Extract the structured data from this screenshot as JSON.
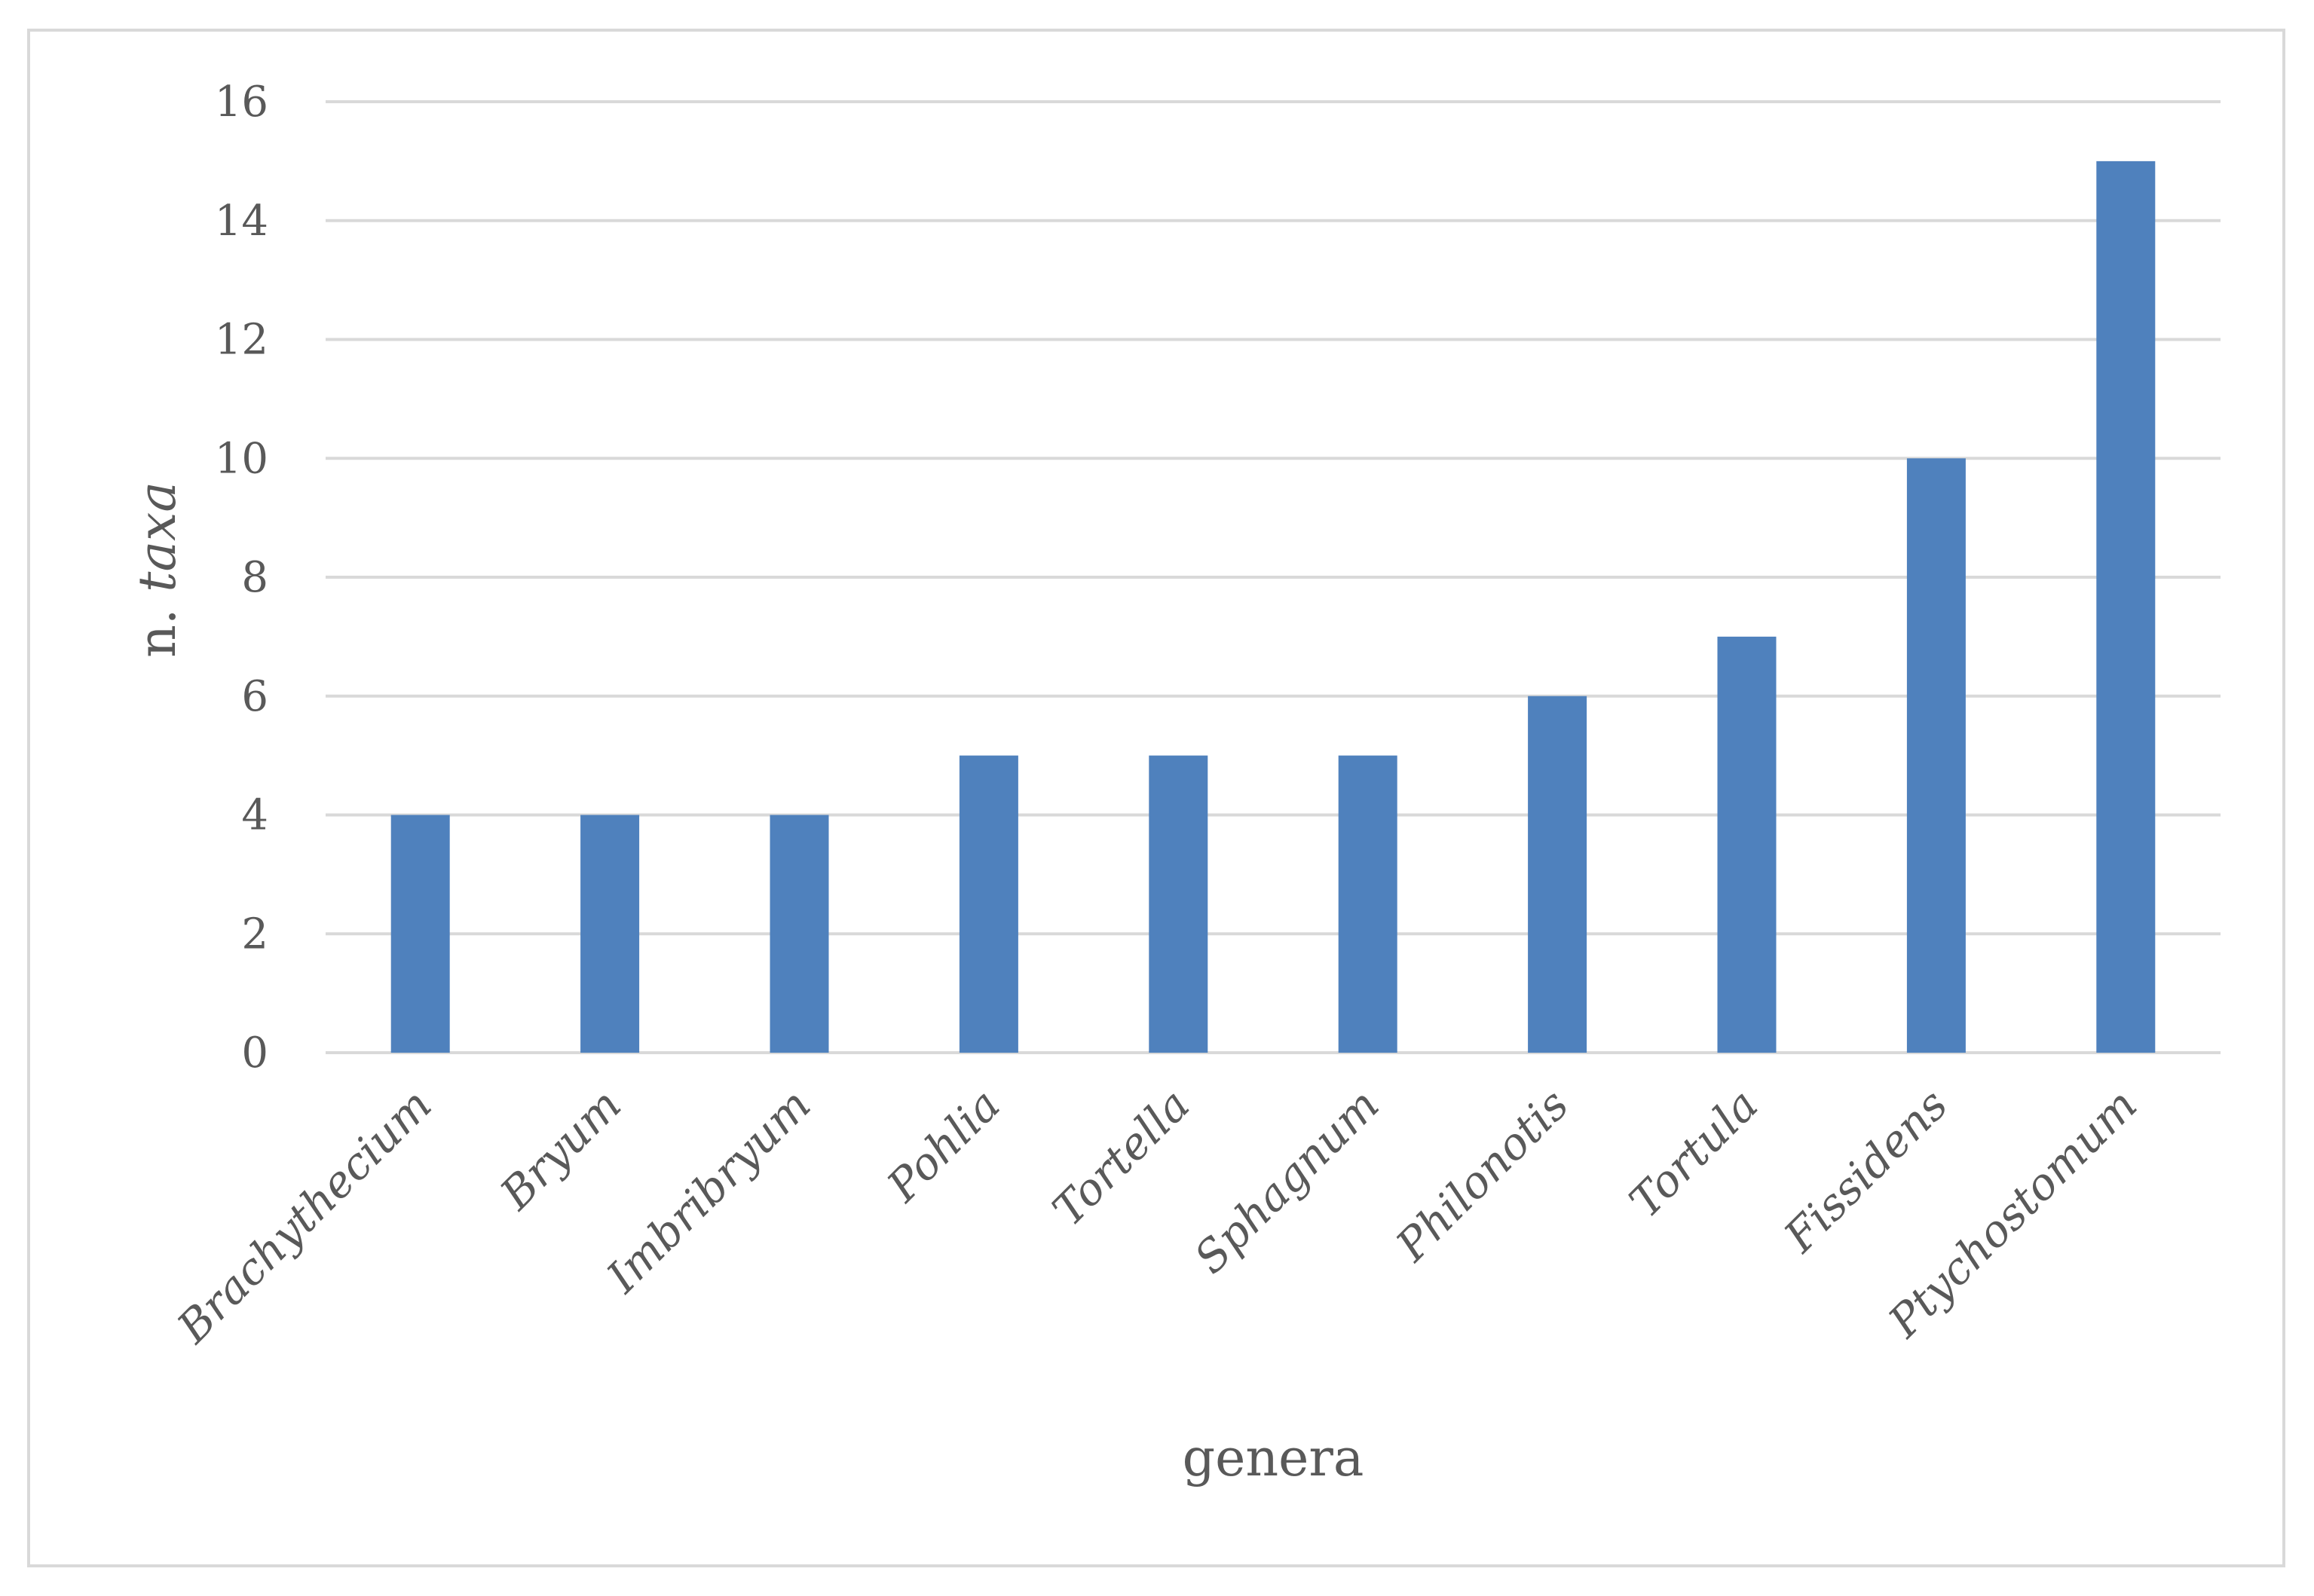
{
  "chart_data": {
    "type": "bar",
    "categories": [
      "Brachythecium",
      "Bryum",
      "Imbribryum",
      "Pohlia",
      "Tortella",
      "Sphagnum",
      "Philonotis",
      "Tortula",
      "Fissidens",
      "Ptychostomum"
    ],
    "values": [
      4,
      4,
      4,
      5,
      5,
      5,
      6,
      7,
      10,
      15
    ],
    "xlabel": "genera",
    "ylabel": {
      "prefix": "n. ",
      "italic": "taxa"
    },
    "ylim": [
      0,
      16
    ],
    "yticks": [
      0,
      2,
      4,
      6,
      8,
      10,
      12,
      14,
      16
    ],
    "grid": true,
    "legend": "none",
    "bar_color": "#4f81bd",
    "grid_color": "#d9d9d9"
  }
}
